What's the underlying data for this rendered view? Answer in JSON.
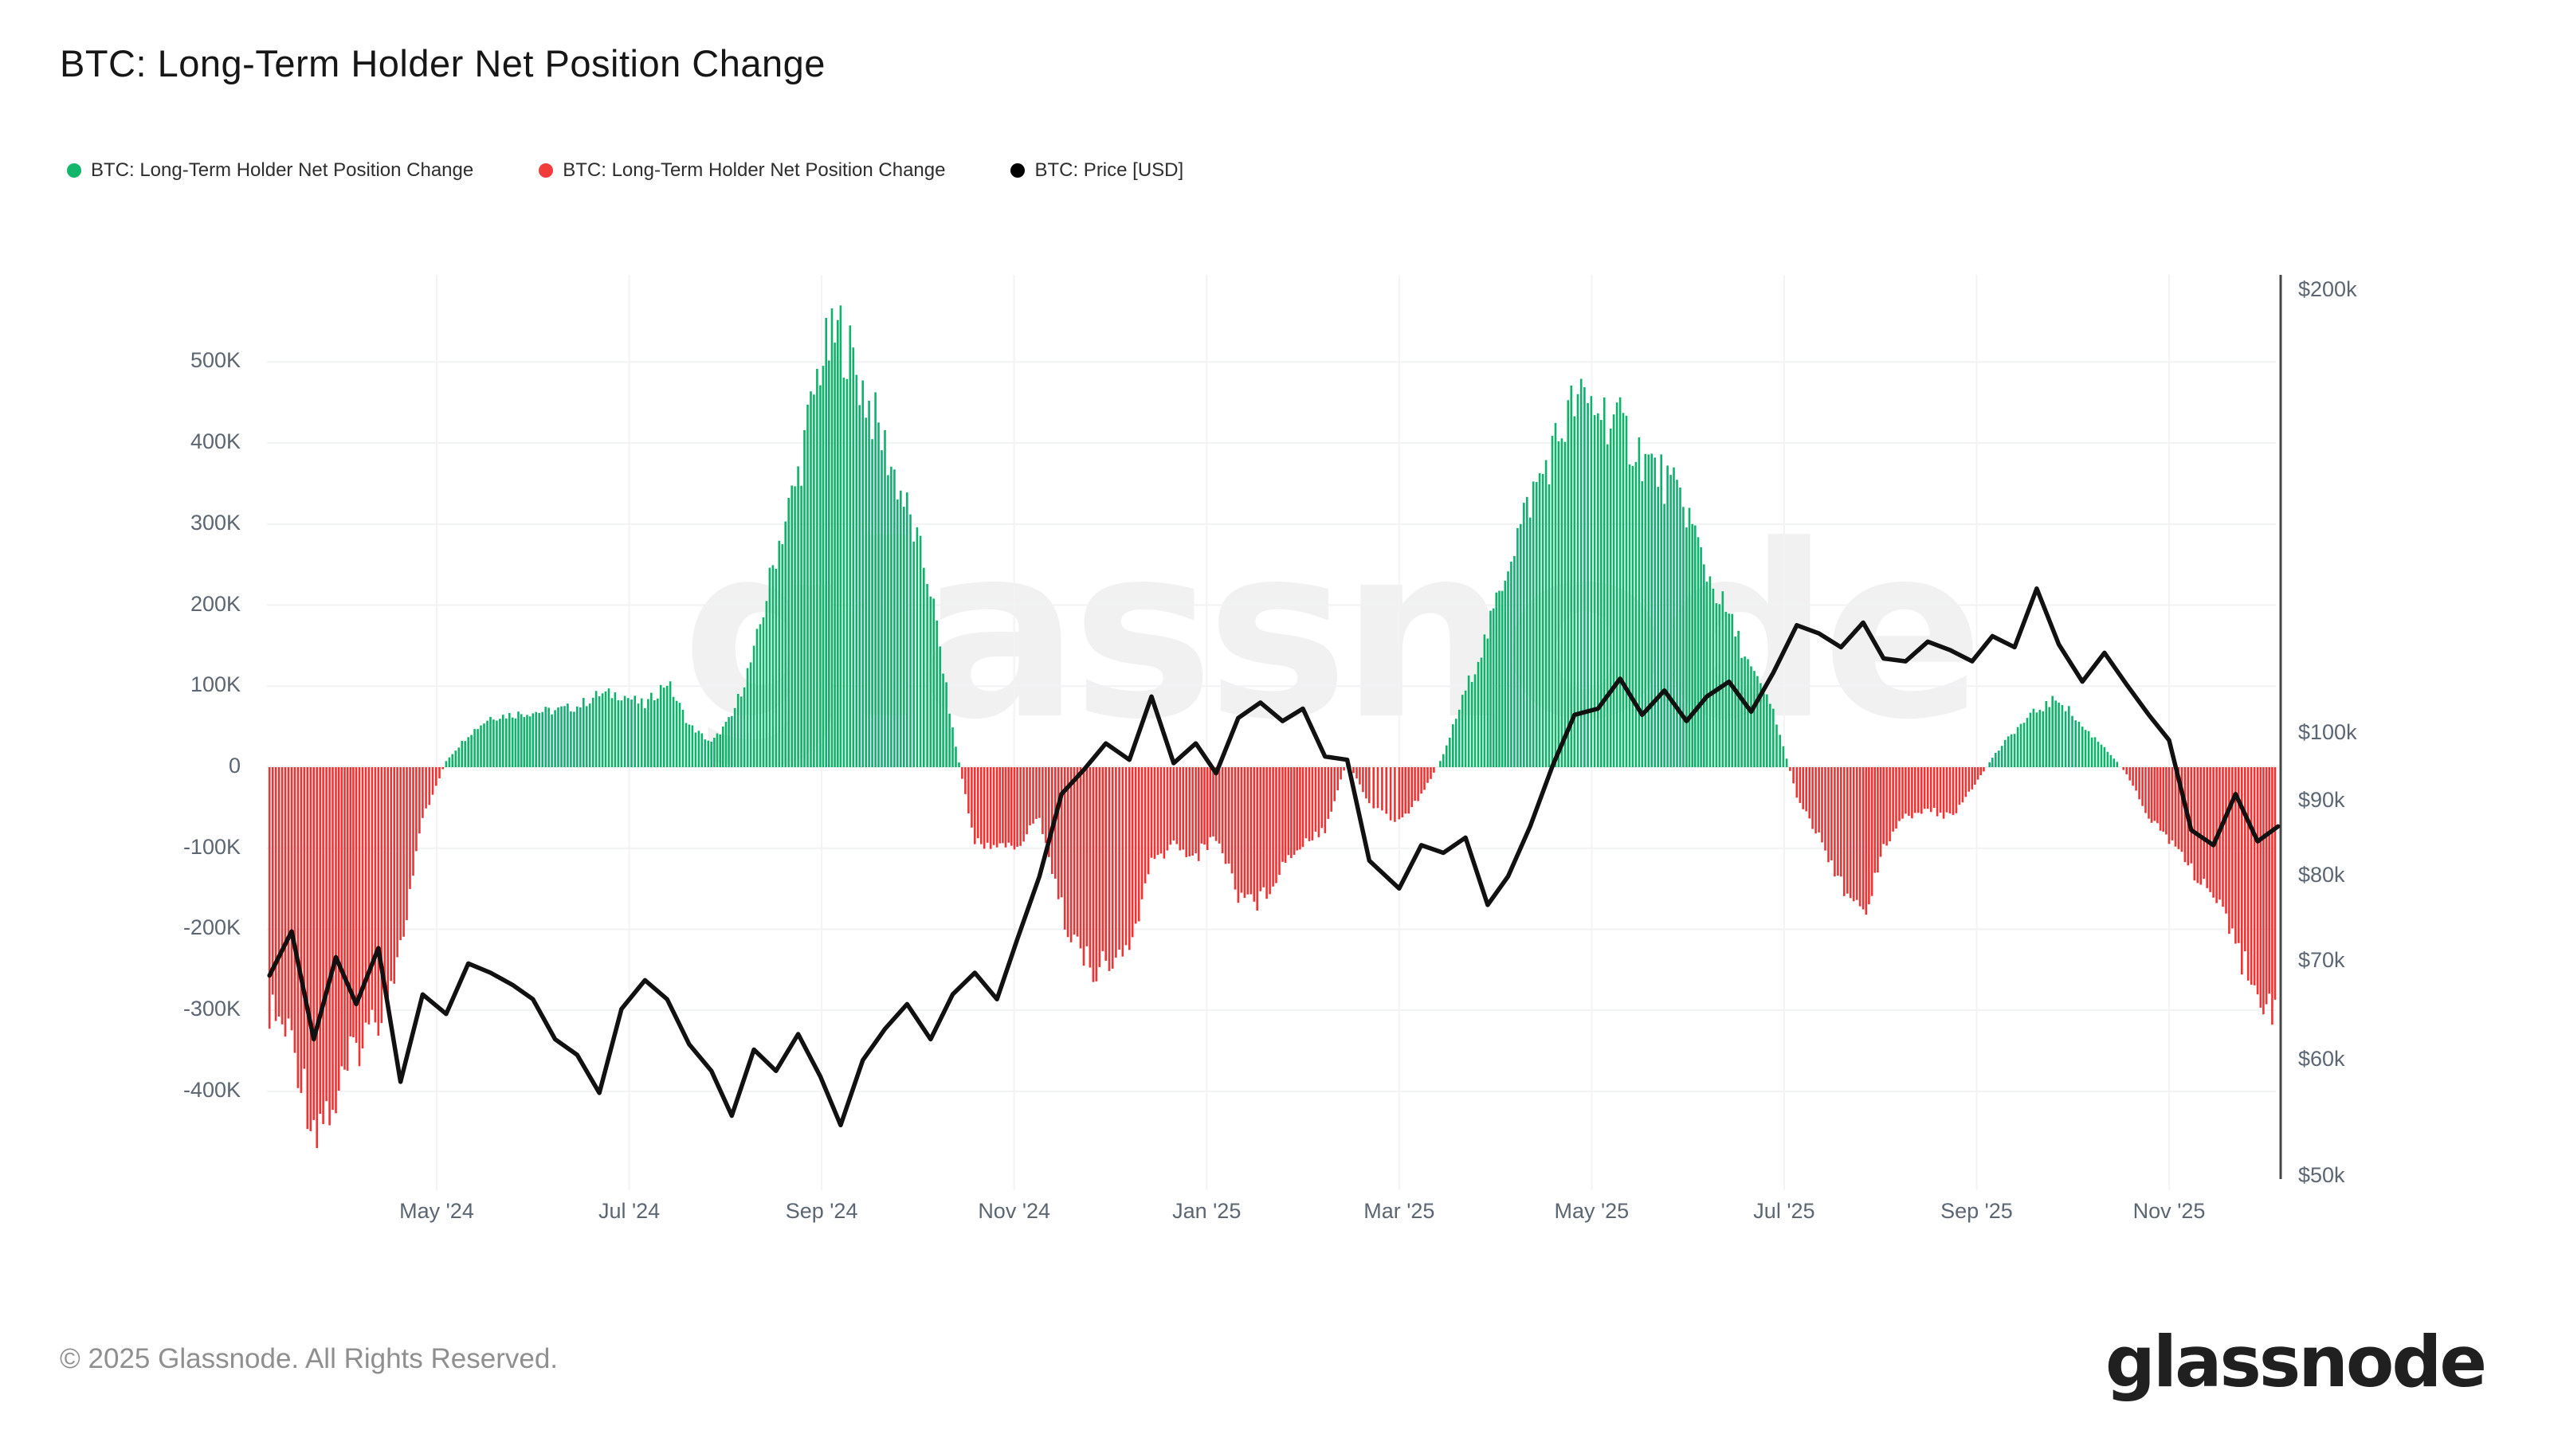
{
  "header": {
    "title": "BTC: Long-Term Holder Net Position Change"
  },
  "legend": {
    "items": [
      {
        "label": "BTC: Long-Term Holder Net Position Change",
        "color": "#12b76a"
      },
      {
        "label": "BTC: Long-Term Holder Net Position Change",
        "color": "#f23b3b"
      },
      {
        "label": "BTC: Price [USD]",
        "color": "#000000"
      }
    ]
  },
  "watermark": "glassnode",
  "footer": {
    "copyright": "© 2025 Glassnode. All Rights Reserved.",
    "brand": "glassnode"
  },
  "colors": {
    "bar_positive": "#0eb26b",
    "bar_negative": "#ef3333",
    "price_line": "#111111",
    "grid": "#f1f2f4",
    "month_grid": "#f3f3f3",
    "right_axis_line": "#474747",
    "tick_text": "#5b6672"
  },
  "axes": {
    "left_ticks": [
      {
        "label": "500K",
        "value": 500
      },
      {
        "label": "400K",
        "value": 400
      },
      {
        "label": "300K",
        "value": 300
      },
      {
        "label": "200K",
        "value": 200
      },
      {
        "label": "100K",
        "value": 100
      },
      {
        "label": "0",
        "value": 0
      },
      {
        "label": "-100K",
        "value": -100
      },
      {
        "label": "-200K",
        "value": -200
      },
      {
        "label": "-300K",
        "value": -300
      },
      {
        "label": "-400K",
        "value": -400
      }
    ],
    "right_ticks": [
      {
        "label": "$200k",
        "value": 200
      },
      {
        "label": "$100k",
        "value": 100
      },
      {
        "label": "$90k",
        "value": 90
      },
      {
        "label": "$80k",
        "value": 80
      },
      {
        "label": "$70k",
        "value": 70
      },
      {
        "label": "$60k",
        "value": 60
      },
      {
        "label": "$50k",
        "value": 50
      }
    ],
    "x_ticks": [
      {
        "label": "May '24",
        "month": "2024-05"
      },
      {
        "label": "Jul '24",
        "month": "2024-07"
      },
      {
        "label": "Sep '24",
        "month": "2024-09"
      },
      {
        "label": "Nov '24",
        "month": "2024-11"
      },
      {
        "label": "Jan '25",
        "month": "2025-01"
      },
      {
        "label": "Mar '25",
        "month": "2025-03"
      },
      {
        "label": "May '25",
        "month": "2025-05"
      },
      {
        "label": "Jul '25",
        "month": "2025-07"
      },
      {
        "label": "Sep '25",
        "month": "2025-09"
      },
      {
        "label": "Nov '25",
        "month": "2025-11"
      }
    ]
  },
  "chart_data": {
    "type": "combo",
    "title": "BTC: Long-Term Holder Net Position Change",
    "left_axis": {
      "unit": "BTC (thousands)",
      "range": [
        -450,
        560
      ],
      "grid": true
    },
    "right_axis": {
      "unit": "USD (thousands)",
      "scale": "log",
      "range": [
        50,
        200
      ]
    },
    "series": [
      {
        "name": "BTC: Long-Term Holder Net Position Change",
        "type": "bar",
        "unit": "BTC (thousands)",
        "positive_color": "#0eb26b",
        "negative_color": "#ef3333",
        "points": [
          {
            "d": "2024-03-09",
            "v": -300
          },
          {
            "d": "2024-03-16",
            "v": -335
          },
          {
            "d": "2024-03-23",
            "v": -440
          },
          {
            "d": "2024-03-30",
            "v": -415
          },
          {
            "d": "2024-04-06",
            "v": -345
          },
          {
            "d": "2024-04-13",
            "v": -305
          },
          {
            "d": "2024-04-20",
            "v": -225
          },
          {
            "d": "2024-04-27",
            "v": -65
          },
          {
            "d": "2024-05-04",
            "v": 8
          },
          {
            "d": "2024-05-11",
            "v": 40
          },
          {
            "d": "2024-05-18",
            "v": 62
          },
          {
            "d": "2024-05-25",
            "v": 65
          },
          {
            "d": "2024-06-01",
            "v": 68
          },
          {
            "d": "2024-06-08",
            "v": 70
          },
          {
            "d": "2024-06-15",
            "v": 75
          },
          {
            "d": "2024-06-22",
            "v": 90
          },
          {
            "d": "2024-06-29",
            "v": 90
          },
          {
            "d": "2024-07-06",
            "v": 76
          },
          {
            "d": "2024-07-13",
            "v": 106
          },
          {
            "d": "2024-07-20",
            "v": 52
          },
          {
            "d": "2024-07-27",
            "v": 30
          },
          {
            "d": "2024-08-03",
            "v": 62
          },
          {
            "d": "2024-08-10",
            "v": 140
          },
          {
            "d": "2024-08-17",
            "v": 265
          },
          {
            "d": "2024-08-24",
            "v": 360
          },
          {
            "d": "2024-08-31",
            "v": 500
          },
          {
            "d": "2024-09-07",
            "v": 538
          },
          {
            "d": "2024-09-14",
            "v": 468
          },
          {
            "d": "2024-09-21",
            "v": 395
          },
          {
            "d": "2024-09-28",
            "v": 318
          },
          {
            "d": "2024-10-05",
            "v": 222
          },
          {
            "d": "2024-10-12",
            "v": 46
          },
          {
            "d": "2024-10-19",
            "v": -95
          },
          {
            "d": "2024-10-26",
            "v": -95
          },
          {
            "d": "2024-11-02",
            "v": -100
          },
          {
            "d": "2024-11-09",
            "v": -60
          },
          {
            "d": "2024-11-16",
            "v": -175
          },
          {
            "d": "2024-11-23",
            "v": -240
          },
          {
            "d": "2024-11-30",
            "v": -250
          },
          {
            "d": "2024-12-07",
            "v": -225
          },
          {
            "d": "2024-12-14",
            "v": -120
          },
          {
            "d": "2024-12-21",
            "v": -95
          },
          {
            "d": "2024-12-28",
            "v": -110
          },
          {
            "d": "2025-01-04",
            "v": -85
          },
          {
            "d": "2025-01-11",
            "v": -155
          },
          {
            "d": "2025-01-18",
            "v": -165
          },
          {
            "d": "2025-01-25",
            "v": -120
          },
          {
            "d": "2025-02-01",
            "v": -92
          },
          {
            "d": "2025-02-08",
            "v": -75
          },
          {
            "d": "2025-02-15",
            "v": 8
          },
          {
            "d": "2025-02-22",
            "v": -45
          },
          {
            "d": "2025-03-01",
            "v": -68
          },
          {
            "d": "2025-03-08",
            "v": -35
          },
          {
            "d": "2025-03-15",
            "v": 15
          },
          {
            "d": "2025-03-22",
            "v": 95
          },
          {
            "d": "2025-03-29",
            "v": 165
          },
          {
            "d": "2025-04-05",
            "v": 255
          },
          {
            "d": "2025-04-12",
            "v": 330
          },
          {
            "d": "2025-04-19",
            "v": 390
          },
          {
            "d": "2025-04-26",
            "v": 450
          },
          {
            "d": "2025-05-03",
            "v": 445
          },
          {
            "d": "2025-05-10",
            "v": 420
          },
          {
            "d": "2025-05-17",
            "v": 385
          },
          {
            "d": "2025-05-24",
            "v": 355
          },
          {
            "d": "2025-05-31",
            "v": 320
          },
          {
            "d": "2025-06-07",
            "v": 240
          },
          {
            "d": "2025-06-14",
            "v": 185
          },
          {
            "d": "2025-06-21",
            "v": 120
          },
          {
            "d": "2025-06-28",
            "v": 70
          },
          {
            "d": "2025-07-05",
            "v": -35
          },
          {
            "d": "2025-07-12",
            "v": -85
          },
          {
            "d": "2025-07-19",
            "v": -140
          },
          {
            "d": "2025-07-26",
            "v": -185
          },
          {
            "d": "2025-08-02",
            "v": -95
          },
          {
            "d": "2025-08-09",
            "v": -62
          },
          {
            "d": "2025-08-16",
            "v": -52
          },
          {
            "d": "2025-08-23",
            "v": -62
          },
          {
            "d": "2025-08-30",
            "v": -28
          },
          {
            "d": "2025-09-06",
            "v": 12
          },
          {
            "d": "2025-09-13",
            "v": 45
          },
          {
            "d": "2025-09-20",
            "v": 70
          },
          {
            "d": "2025-09-27",
            "v": 85
          },
          {
            "d": "2025-10-04",
            "v": 50
          },
          {
            "d": "2025-10-11",
            "v": 25
          },
          {
            "d": "2025-10-18",
            "v": -8
          },
          {
            "d": "2025-10-25",
            "v": -60
          },
          {
            "d": "2025-11-01",
            "v": -88
          },
          {
            "d": "2025-11-08",
            "v": -125
          },
          {
            "d": "2025-11-15",
            "v": -160
          },
          {
            "d": "2025-11-22",
            "v": -225
          },
          {
            "d": "2025-11-29",
            "v": -265
          },
          {
            "d": "2025-12-05",
            "v": -318
          }
        ]
      },
      {
        "name": "BTC: Price [USD]",
        "type": "line",
        "unit": "USD (thousands)",
        "color": "#111111",
        "points": [
          {
            "d": "2024-03-09",
            "v": 68.5
          },
          {
            "d": "2024-03-16",
            "v": 73.4
          },
          {
            "d": "2024-03-23",
            "v": 62.0
          },
          {
            "d": "2024-03-30",
            "v": 70.5
          },
          {
            "d": "2024-04-06",
            "v": 65.5
          },
          {
            "d": "2024-04-13",
            "v": 71.5
          },
          {
            "d": "2024-04-20",
            "v": 58.0
          },
          {
            "d": "2024-04-27",
            "v": 66.5
          },
          {
            "d": "2024-05-04",
            "v": 64.5
          },
          {
            "d": "2024-05-11",
            "v": 69.8
          },
          {
            "d": "2024-05-18",
            "v": 68.8
          },
          {
            "d": "2024-05-25",
            "v": 67.5
          },
          {
            "d": "2024-06-01",
            "v": 66.0
          },
          {
            "d": "2024-06-08",
            "v": 62.0
          },
          {
            "d": "2024-06-15",
            "v": 60.5
          },
          {
            "d": "2024-06-22",
            "v": 57.0
          },
          {
            "d": "2024-06-29",
            "v": 65.0
          },
          {
            "d": "2024-07-06",
            "v": 68.0
          },
          {
            "d": "2024-07-13",
            "v": 66.0
          },
          {
            "d": "2024-07-20",
            "v": 61.5
          },
          {
            "d": "2024-07-27",
            "v": 59.0
          },
          {
            "d": "2024-08-03",
            "v": 55.0
          },
          {
            "d": "2024-08-10",
            "v": 61.0
          },
          {
            "d": "2024-08-17",
            "v": 59.0
          },
          {
            "d": "2024-08-24",
            "v": 62.5
          },
          {
            "d": "2024-08-31",
            "v": 58.5
          },
          {
            "d": "2024-09-07",
            "v": 54.2
          },
          {
            "d": "2024-09-14",
            "v": 60.0
          },
          {
            "d": "2024-09-21",
            "v": 63.0
          },
          {
            "d": "2024-09-28",
            "v": 65.5
          },
          {
            "d": "2024-10-05",
            "v": 62.0
          },
          {
            "d": "2024-10-12",
            "v": 66.5
          },
          {
            "d": "2024-10-19",
            "v": 68.8
          },
          {
            "d": "2024-10-26",
            "v": 66.0
          },
          {
            "d": "2024-11-02",
            "v": 72.5
          },
          {
            "d": "2024-11-09",
            "v": 80.0
          },
          {
            "d": "2024-11-16",
            "v": 91.0
          },
          {
            "d": "2024-11-23",
            "v": 94.5
          },
          {
            "d": "2024-11-30",
            "v": 98.5
          },
          {
            "d": "2024-12-07",
            "v": 96.0
          },
          {
            "d": "2024-12-14",
            "v": 106.0
          },
          {
            "d": "2024-12-21",
            "v": 95.5
          },
          {
            "d": "2024-12-28",
            "v": 98.5
          },
          {
            "d": "2025-01-04",
            "v": 94.0
          },
          {
            "d": "2025-01-11",
            "v": 102.5
          },
          {
            "d": "2025-01-18",
            "v": 105.0
          },
          {
            "d": "2025-01-25",
            "v": 102.0
          },
          {
            "d": "2025-02-01",
            "v": 104.0
          },
          {
            "d": "2025-02-08",
            "v": 96.5
          },
          {
            "d": "2025-02-15",
            "v": 96.0
          },
          {
            "d": "2025-02-22",
            "v": 82.0
          },
          {
            "d": "2025-03-01",
            "v": 78.5
          },
          {
            "d": "2025-03-08",
            "v": 84.0
          },
          {
            "d": "2025-03-15",
            "v": 83.0
          },
          {
            "d": "2025-03-22",
            "v": 85.0
          },
          {
            "d": "2025-03-29",
            "v": 76.5
          },
          {
            "d": "2025-04-05",
            "v": 80.0
          },
          {
            "d": "2025-04-12",
            "v": 86.5
          },
          {
            "d": "2025-04-19",
            "v": 95.0
          },
          {
            "d": "2025-04-26",
            "v": 103.0
          },
          {
            "d": "2025-05-03",
            "v": 104.0
          },
          {
            "d": "2025-05-10",
            "v": 109.0
          },
          {
            "d": "2025-05-17",
            "v": 103.0
          },
          {
            "d": "2025-05-24",
            "v": 107.0
          },
          {
            "d": "2025-05-31",
            "v": 102.0
          },
          {
            "d": "2025-06-07",
            "v": 106.0
          },
          {
            "d": "2025-06-14",
            "v": 108.5
          },
          {
            "d": "2025-06-21",
            "v": 103.5
          },
          {
            "d": "2025-06-28",
            "v": 110.0
          },
          {
            "d": "2025-07-05",
            "v": 118.5
          },
          {
            "d": "2025-07-12",
            "v": 117.0
          },
          {
            "d": "2025-07-19",
            "v": 114.5
          },
          {
            "d": "2025-07-26",
            "v": 119.0
          },
          {
            "d": "2025-08-02",
            "v": 112.5
          },
          {
            "d": "2025-08-09",
            "v": 112.0
          },
          {
            "d": "2025-08-16",
            "v": 115.5
          },
          {
            "d": "2025-08-23",
            "v": 114.0
          },
          {
            "d": "2025-08-30",
            "v": 112.0
          },
          {
            "d": "2025-09-06",
            "v": 116.5
          },
          {
            "d": "2025-09-13",
            "v": 114.5
          },
          {
            "d": "2025-09-20",
            "v": 125.5
          },
          {
            "d": "2025-09-27",
            "v": 115.0
          },
          {
            "d": "2025-10-04",
            "v": 108.5
          },
          {
            "d": "2025-10-11",
            "v": 113.5
          },
          {
            "d": "2025-10-18",
            "v": 108.0
          },
          {
            "d": "2025-10-25",
            "v": 103.0
          },
          {
            "d": "2025-11-01",
            "v": 99.0
          },
          {
            "d": "2025-11-08",
            "v": 86.0
          },
          {
            "d": "2025-11-15",
            "v": 84.0
          },
          {
            "d": "2025-11-22",
            "v": 91.0
          },
          {
            "d": "2025-11-29",
            "v": 84.5
          },
          {
            "d": "2025-12-05",
            "v": 86.5
          }
        ]
      }
    ]
  }
}
